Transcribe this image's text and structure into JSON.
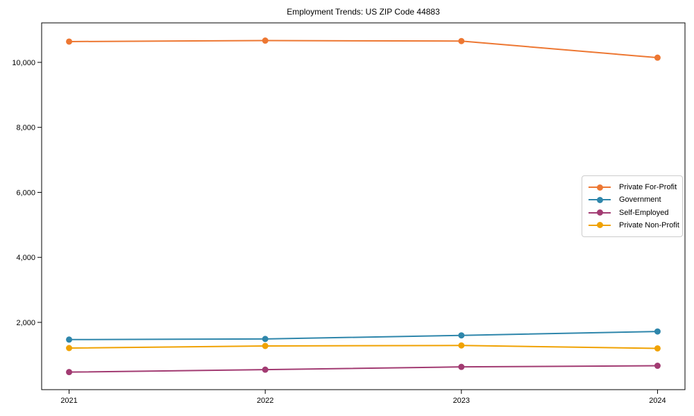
{
  "chart_data": {
    "type": "line",
    "title": "Employment Trends: US ZIP Code 44883",
    "x": [
      2021,
      2022,
      2023,
      2024
    ],
    "x_tick_labels": [
      "2021",
      "2022",
      "2023",
      "2024"
    ],
    "y_ticks": [
      2000,
      4000,
      6000,
      8000,
      10000
    ],
    "y_tick_labels": [
      "2,000",
      "4,000",
      "6,000",
      "8,000",
      "10,000"
    ],
    "xlim": [
      2020.86,
      2024.14
    ],
    "ylim": [
      -70,
      11215
    ],
    "grid": false,
    "legend_position": "center right",
    "xlabel": "",
    "ylabel": "",
    "series": [
      {
        "name": "Private For-Profit",
        "color": "#ED7732",
        "values": [
          10640,
          10670,
          10655,
          10145
        ]
      },
      {
        "name": "Government",
        "color": "#2E86AB",
        "values": [
          1470,
          1490,
          1600,
          1720
        ]
      },
      {
        "name": "Self-Employed",
        "color": "#A23B72",
        "values": [
          470,
          545,
          630,
          665
        ]
      },
      {
        "name": "Private Non-Profit",
        "color": "#F0A202",
        "values": [
          1210,
          1275,
          1290,
          1200
        ]
      }
    ]
  }
}
